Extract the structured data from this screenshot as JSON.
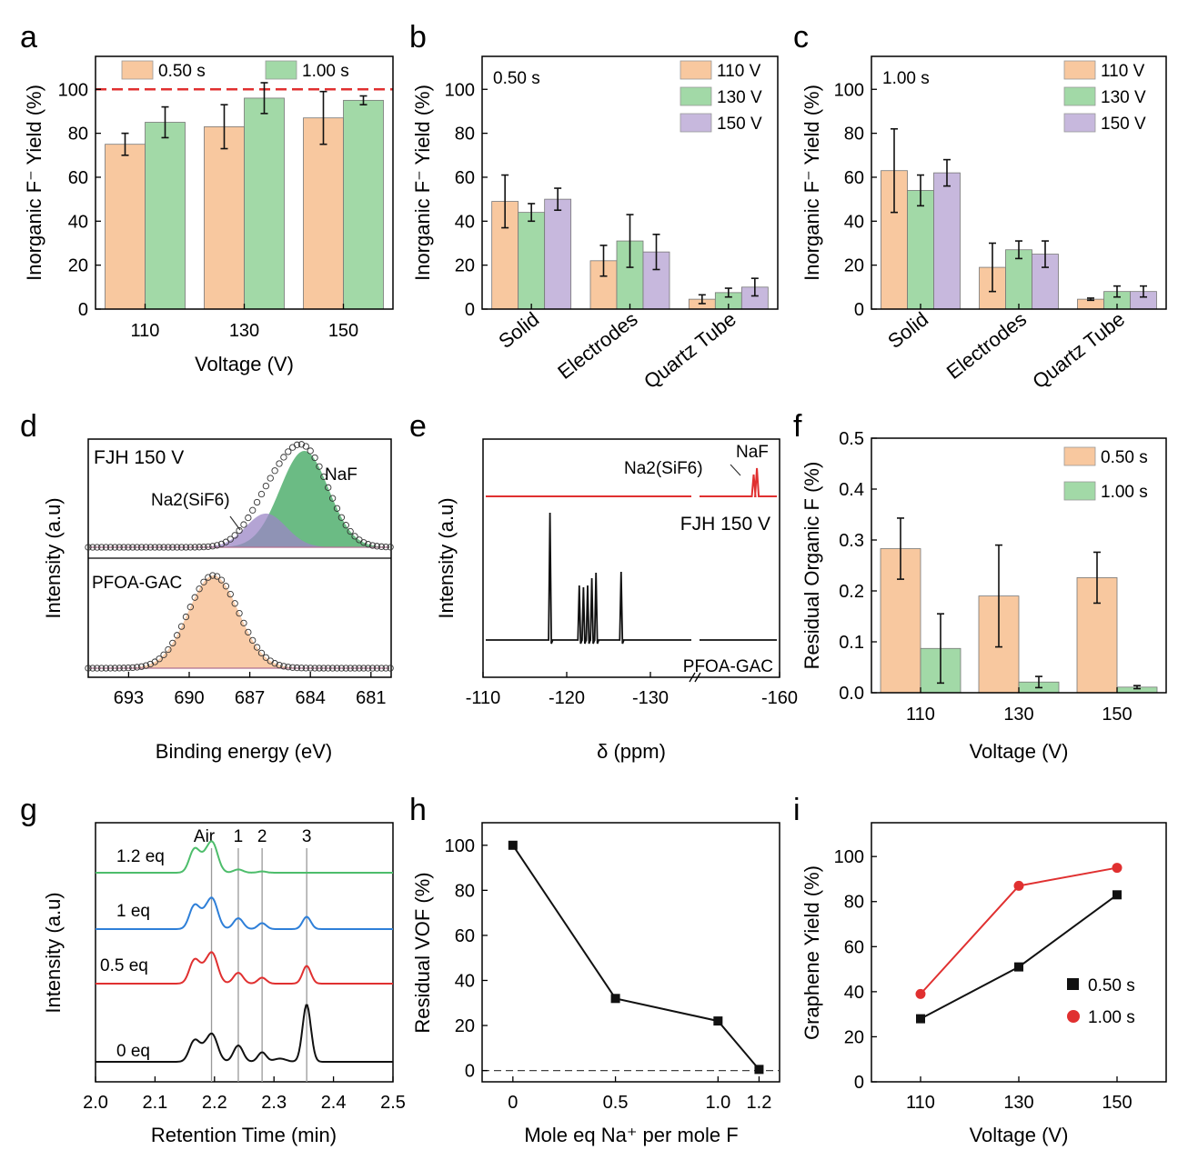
{
  "colors": {
    "orange": "#f8c89f",
    "green": "#a2d9a7",
    "purple": "#c7b8dd",
    "red": "#e03030",
    "black": "#111111",
    "blue": "#2e7fd8",
    "lgreen": "#4dbd6b",
    "gray": "#888888"
  },
  "panels": {
    "a": "a",
    "b": "b",
    "c": "c",
    "d": "d",
    "e": "e",
    "f": "f",
    "g": "g",
    "h": "h",
    "i": "i"
  },
  "chart_data": [
    {
      "id": "a",
      "type": "bar",
      "xlabel": "Voltage (V)",
      "ylabel": "Inorganic F⁻ Yield (%)",
      "categories": [
        "110",
        "130",
        "150"
      ],
      "ylim": [
        0,
        115
      ],
      "yticks": [
        0,
        20,
        40,
        60,
        80,
        100
      ],
      "reference_line": 100,
      "series": [
        {
          "name": "0.50 s",
          "values": [
            75,
            83,
            87
          ],
          "errors": [
            5,
            10,
            12
          ]
        },
        {
          "name": "1.00 s",
          "values": [
            85,
            96,
            95
          ],
          "errors": [
            7,
            7,
            2
          ]
        }
      ]
    },
    {
      "id": "b",
      "type": "bar",
      "annotation": "0.50 s",
      "xlabel": "",
      "ylabel": "Inorganic F⁻ Yield (%)",
      "categories": [
        "Solid",
        "Electrodes",
        "Quartz Tube"
      ],
      "ylim": [
        0,
        115
      ],
      "yticks": [
        0,
        20,
        40,
        60,
        80,
        100
      ],
      "series": [
        {
          "name": "110 V",
          "values": [
            49,
            22,
            4.5
          ],
          "errors": [
            12,
            7,
            2
          ]
        },
        {
          "name": "130 V",
          "values": [
            44,
            31,
            7.5
          ],
          "errors": [
            4,
            12,
            2
          ]
        },
        {
          "name": "150 V",
          "values": [
            50,
            26,
            10
          ],
          "errors": [
            5,
            8,
            4
          ]
        }
      ]
    },
    {
      "id": "c",
      "type": "bar",
      "annotation": "1.00 s",
      "xlabel": "",
      "ylabel": "Inorganic F⁻ Yield (%)",
      "categories": [
        "Solid",
        "Electrodes",
        "Quartz Tube"
      ],
      "ylim": [
        0,
        115
      ],
      "yticks": [
        0,
        20,
        40,
        60,
        80,
        100
      ],
      "series": [
        {
          "name": "110 V",
          "values": [
            63,
            19,
            4.5
          ],
          "errors": [
            19,
            11,
            0.5
          ]
        },
        {
          "name": "130 V",
          "values": [
            54,
            27,
            8
          ],
          "errors": [
            7,
            4,
            2.5
          ]
        },
        {
          "name": "150 V",
          "values": [
            62,
            25,
            8
          ],
          "errors": [
            6,
            6,
            2.5
          ]
        }
      ]
    },
    {
      "id": "d",
      "type": "line",
      "xlabel": "Binding energy (eV)",
      "ylabel": "Intensity (a.u)",
      "xlim": [
        695,
        680
      ],
      "xticks": [
        693,
        690,
        687,
        684,
        681
      ],
      "labels": {
        "top": "FJH 150 V",
        "peak1": "NaF",
        "peak2": "Na2(SiF6)",
        "bottom": "PFOA-GAC"
      },
      "series": [
        {
          "name": "FJH 150 V",
          "peaks": [
            {
              "center": 684.3,
              "height": 1.0,
              "width": 1.2,
              "label": "NaF"
            },
            {
              "center": 686.2,
              "height": 0.35,
              "width": 1.0,
              "label": "Na2(SiF6)"
            }
          ]
        },
        {
          "name": "PFOA-GAC",
          "peaks": [
            {
              "center": 688.8,
              "height": 1.0,
              "width": 1.25
            }
          ]
        }
      ]
    },
    {
      "id": "e",
      "type": "line",
      "xlabel": "δ (ppm)",
      "ylabel": "Intensity (a.u)",
      "xtick_labels": [
        "-110",
        "-120",
        "-130",
        "-160"
      ],
      "labels": {
        "top": "FJH 150 V",
        "bottom": "PFOA-GAC",
        "na2": "Na2(SiF6)",
        "naf": "NaF"
      },
      "series": [
        {
          "name": "FJH 150 V",
          "peaks_ppm": [
            -152,
            -153
          ]
        },
        {
          "name": "PFOA-GAC",
          "peaks_ppm": [
            -118,
            -121.5,
            -122,
            -122.5,
            -123,
            -123.5,
            -126.5
          ]
        }
      ]
    },
    {
      "id": "f",
      "type": "bar",
      "xlabel": "Voltage (V)",
      "ylabel": "Residual Organic F (%)",
      "categories": [
        "110",
        "130",
        "150"
      ],
      "ylim": [
        0,
        0.5
      ],
      "yticks": [
        0.0,
        0.1,
        0.2,
        0.3,
        0.4,
        0.5
      ],
      "series": [
        {
          "name": "0.50 s",
          "values": [
            0.283,
            0.19,
            0.226
          ],
          "errors": [
            0.06,
            0.1,
            0.05
          ]
        },
        {
          "name": "1.00 s",
          "values": [
            0.087,
            0.021,
            0.011
          ],
          "errors": [
            0.068,
            0.011,
            0.003
          ]
        }
      ]
    },
    {
      "id": "g",
      "type": "line",
      "xlabel": "Retention Time (min)",
      "ylabel": "Intensity (a.u)",
      "xlim": [
        2.0,
        2.5
      ],
      "xticks": [
        "2.0",
        "2.1",
        "2.2",
        "2.3",
        "2.4",
        "2.5"
      ],
      "markers": [
        {
          "label": "Air",
          "x": 2.195
        },
        {
          "label": "1",
          "x": 2.24
        },
        {
          "label": "2",
          "x": 2.28
        },
        {
          "label": "3",
          "x": 2.355
        }
      ],
      "series": [
        {
          "name": "1.2 eq",
          "peak3": 0.0
        },
        {
          "name": "1 eq",
          "peak3": 0.45
        },
        {
          "name": "0.5 eq",
          "peak3": 0.65
        },
        {
          "name": "0 eq",
          "peak3": 2.1
        }
      ]
    },
    {
      "id": "h",
      "type": "line",
      "xlabel": "Mole eq Na⁺ per mole F",
      "ylabel": "Residual VOF (%)",
      "xlim": [
        -0.15,
        1.3
      ],
      "xticks": [
        0,
        0.5,
        1.0,
        1.2
      ],
      "xtick_labels": [
        "0",
        "0.5",
        "1.0",
        "1.2"
      ],
      "ylim": [
        -5,
        110
      ],
      "yticks": [
        0,
        20,
        40,
        60,
        80,
        100
      ],
      "x": [
        0,
        0.5,
        1.0,
        1.2
      ],
      "y": [
        100,
        32,
        22,
        0.5
      ],
      "reference_line": 0
    },
    {
      "id": "i",
      "type": "line",
      "xlabel": "Voltage (V)",
      "ylabel": "Graphene Yield (%)",
      "xlim": [
        100,
        160
      ],
      "xticks": [
        110,
        130,
        150
      ],
      "ylim": [
        0,
        115
      ],
      "yticks": [
        0,
        20,
        40,
        60,
        80,
        100
      ],
      "series": [
        {
          "name": "0.50 s",
          "x": [
            110,
            130,
            150
          ],
          "y": [
            28,
            51,
            83
          ]
        },
        {
          "name": "1.00 s",
          "x": [
            110,
            130,
            150
          ],
          "y": [
            39,
            87,
            95
          ]
        }
      ]
    }
  ]
}
